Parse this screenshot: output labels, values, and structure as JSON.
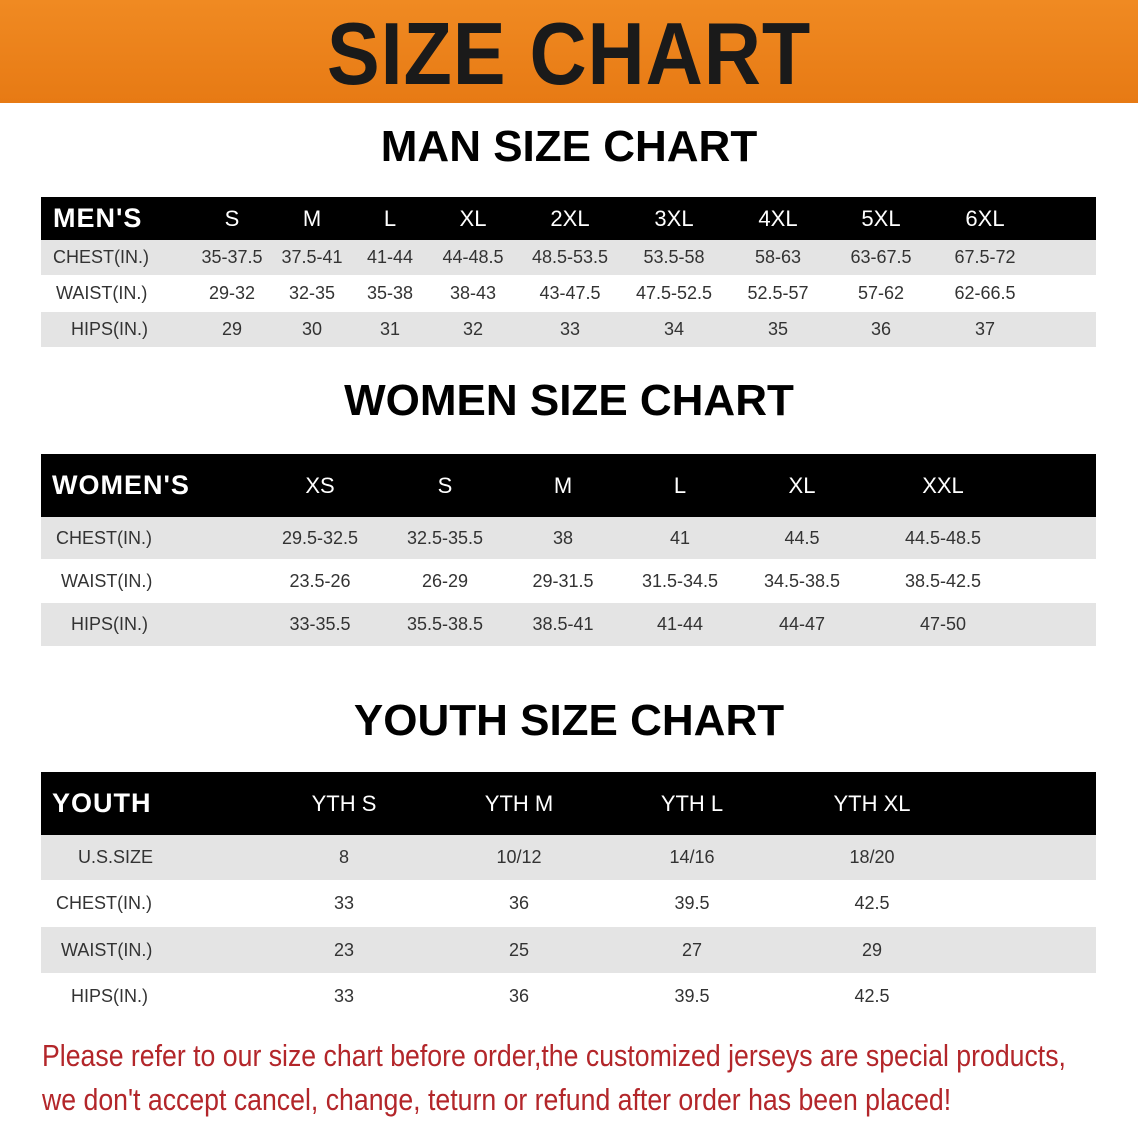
{
  "banner_title": "SIZE CHART",
  "men": {
    "title": "MAN SIZE CHART",
    "header": [
      "MEN'S",
      "S",
      "M",
      "L",
      "XL",
      "2XL",
      "3XL",
      "4XL",
      "5XL",
      "6XL"
    ],
    "rows": [
      [
        "CHEST(IN.)",
        "35-37.5",
        "37.5-41",
        "41-44",
        "44-48.5",
        "48.5-53.5",
        "53.5-58",
        "58-63",
        "63-67.5",
        "67.5-72"
      ],
      [
        "WAIST(IN.)",
        "29-32",
        "32-35",
        "35-38",
        "38-43",
        "43-47.5",
        "47.5-52.5",
        "52.5-57",
        "57-62",
        "62-66.5"
      ],
      [
        "HIPS(IN.)",
        "29",
        "30",
        "31",
        "32",
        "33",
        "34",
        "35",
        "36",
        "37"
      ]
    ]
  },
  "women": {
    "title": "WOMEN SIZE CHART",
    "header": [
      "WOMEN'S",
      "XS",
      "S",
      "M",
      "L",
      "XL",
      "XXL"
    ],
    "rows": [
      [
        "CHEST(IN.)",
        "29.5-32.5",
        "32.5-35.5",
        "38",
        "41",
        "44.5",
        "44.5-48.5"
      ],
      [
        "WAIST(IN.)",
        "23.5-26",
        "26-29",
        "29-31.5",
        "31.5-34.5",
        "34.5-38.5",
        "38.5-42.5"
      ],
      [
        "HIPS(IN.)",
        "33-35.5",
        "35.5-38.5",
        "38.5-41",
        "41-44",
        "44-47",
        "47-50"
      ]
    ]
  },
  "youth": {
    "title": "YOUTH SIZE CHART",
    "header": [
      "YOUTH",
      "YTH S",
      "YTH M",
      "YTH L",
      "YTH XL"
    ],
    "rows": [
      [
        "U.S.SIZE",
        "8",
        "10/12",
        "14/16",
        "18/20"
      ],
      [
        "CHEST(IN.)",
        "33",
        "36",
        "39.5",
        "42.5"
      ],
      [
        "WAIST(IN.)",
        "23",
        "25",
        "27",
        "29"
      ],
      [
        "HIPS(IN.)",
        "33",
        "36",
        "39.5",
        "42.5"
      ]
    ]
  },
  "notice": [
    "Please refer to our size chart before order,the customized jerseys are special products,",
    "we don't accept cancel, change, teturn or refund after order has been placed!"
  ],
  "colors": {
    "banner": "#e97d18",
    "header_bg": "#000000",
    "row_alt": "#e4e4e4",
    "notice": "#b3262a"
  }
}
